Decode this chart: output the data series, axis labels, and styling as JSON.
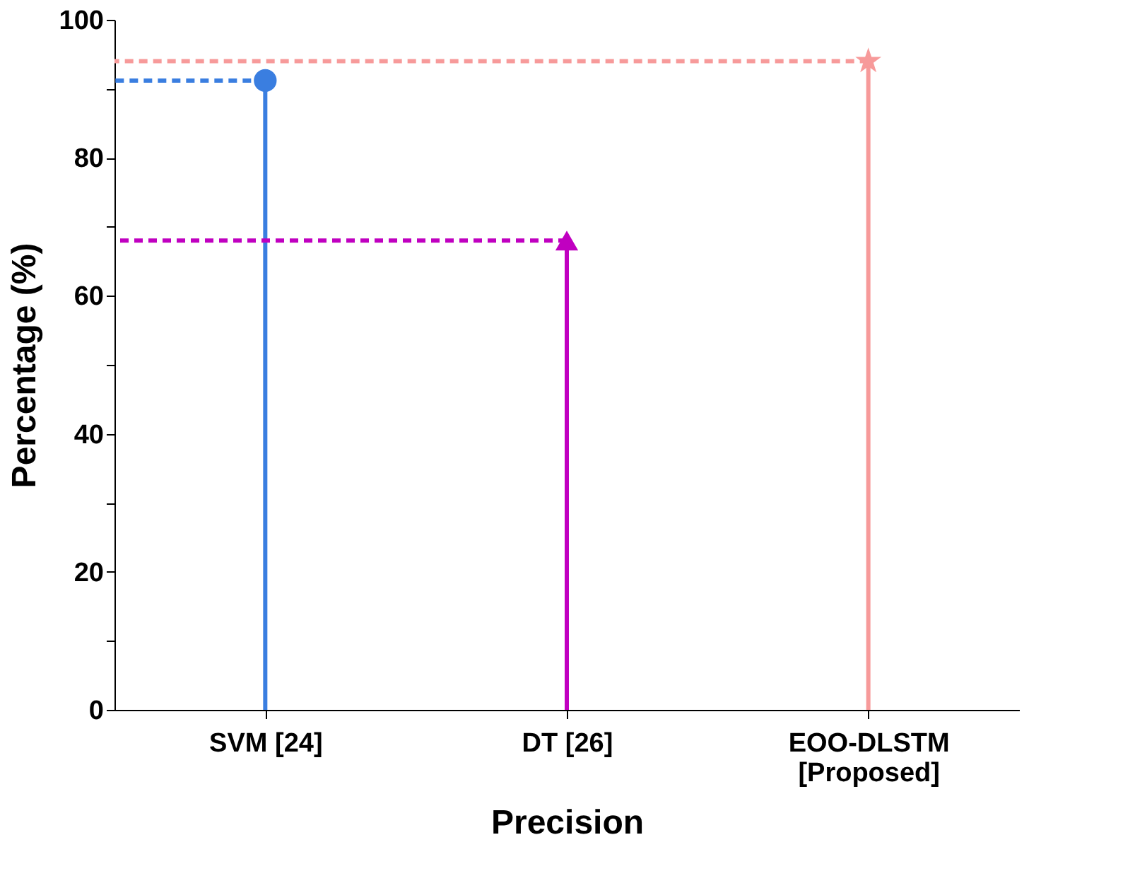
{
  "chart_data": {
    "type": "lollipop",
    "xlabel": "Precision",
    "ylabel": "Percentage (%)",
    "categories": [
      "SVM [24]",
      "DT [26]",
      "EOO-DLSTM\n[Proposed]"
    ],
    "series": [
      {
        "color": "#3a7ee0",
        "values": [
          91.2,
          null,
          null
        ],
        "marker": "circle"
      },
      {
        "color": "#c000c0",
        "values": [
          null,
          68,
          null
        ],
        "marker": "triangle"
      },
      {
        "color": "#f79a9a",
        "values": [
          null,
          null,
          94
        ],
        "marker": "star"
      }
    ],
    "ylim": [
      0,
      100
    ],
    "yticks": [
      0,
      {
        "value": 10,
        "label": null
      },
      20,
      {
        "value": 30,
        "label": null
      },
      40,
      {
        "value": 50,
        "label": null
      },
      60,
      {
        "value": 70,
        "label": null
      },
      80,
      {
        "value": 90,
        "label": null
      },
      100
    ],
    "ref_lines": [
      {
        "axis": "y",
        "value": 91.2,
        "color": "#3a7ee0",
        "line_style": "dashed"
      },
      {
        "axis": "y",
        "value": 68,
        "color": "#c000c0",
        "line_style": "dashed"
      },
      {
        "axis": "y",
        "value": 94,
        "color": "#f79a9a",
        "line_style": "dashed"
      }
    ],
    "grid": false
  }
}
